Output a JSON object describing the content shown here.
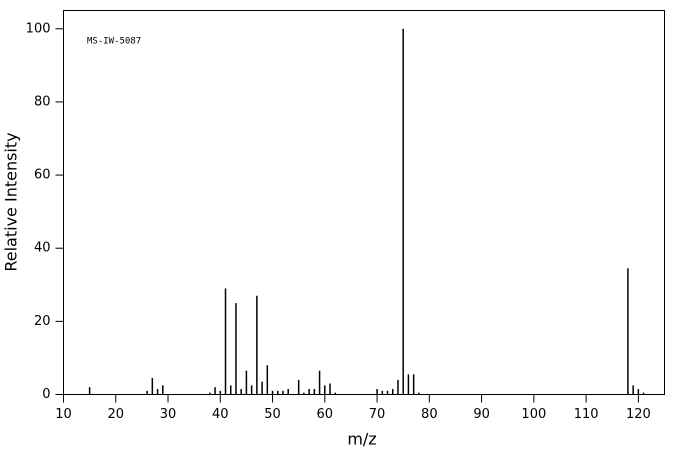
{
  "chart_data": {
    "type": "bar",
    "annotation": "MS-IW-5087",
    "xlabel": "m/z",
    "ylabel": "Relative Intensity",
    "x": [
      15,
      26,
      27,
      28,
      29,
      38,
      39,
      40,
      41,
      42,
      43,
      44,
      45,
      46,
      47,
      48,
      49,
      50,
      51,
      52,
      53,
      55,
      56,
      57,
      58,
      59,
      60,
      61,
      62,
      70,
      71,
      72,
      73,
      74,
      75,
      76,
      77,
      78,
      118,
      119,
      120,
      121
    ],
    "values": [
      2,
      1,
      4.5,
      1.5,
      2.5,
      0.5,
      2,
      1,
      29,
      2.5,
      25,
      1.5,
      6.5,
      2.5,
      27,
      3.5,
      8,
      1,
      1,
      1,
      1.5,
      4,
      0.5,
      1.5,
      1.5,
      6.5,
      2.5,
      3,
      0.5,
      1.5,
      1,
      1,
      1.5,
      4,
      100,
      5.5,
      5.5,
      0.5,
      34.5,
      2.5,
      1.5,
      0.5
    ],
    "color": "#000000",
    "xlim": [
      10,
      125
    ],
    "ylim": [
      0,
      105
    ],
    "xticks": [
      10,
      20,
      30,
      40,
      50,
      60,
      70,
      80,
      90,
      100,
      110,
      120
    ],
    "yticks": [
      0,
      20,
      40,
      60,
      80,
      100
    ]
  }
}
